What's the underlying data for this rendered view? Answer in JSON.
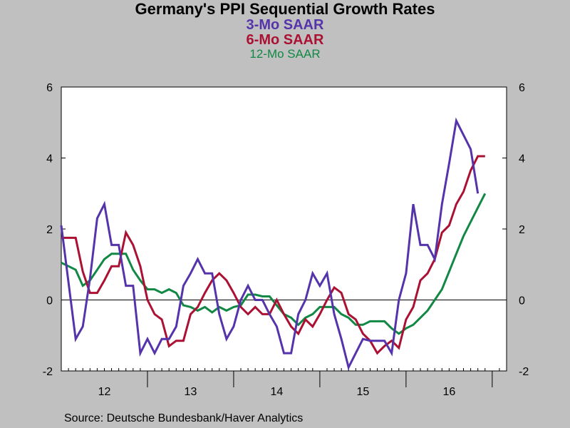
{
  "chart_data": {
    "type": "line",
    "title": "Germany's PPI Sequential Growth Rates",
    "subtitles": [
      "3-Mo SAAR",
      "6-Mo SAAR",
      "12-Mo SAAR"
    ],
    "source": "Source:  Deutsche Bundesbank/Haver Analytics",
    "ylim": [
      -2,
      6
    ],
    "yticks": [
      -2,
      0,
      2,
      4,
      6
    ],
    "xlabels": [
      "12",
      "13",
      "14",
      "15",
      "16"
    ],
    "x_start": "2012-01",
    "x_end": "2017-03",
    "grid": false,
    "colors": {
      "s3": "#5533aa",
      "s6": "#aa1133",
      "s12": "#118844",
      "zero": "#000000",
      "plot_bg": "#ffffff",
      "page_bg": "#c0c0c0"
    },
    "series": [
      {
        "name": "3-Mo SAAR",
        "values": [
          2.1,
          0.5,
          -1.1,
          -0.75,
          0.6,
          2.3,
          2.7,
          1.55,
          1.55,
          0.4,
          0.4,
          -1.5,
          -1.1,
          -1.5,
          -1.1,
          -1.1,
          -0.75,
          0.4,
          0.75,
          1.15,
          0.75,
          0.75,
          -0.4,
          -1.1,
          -0.75,
          0.0,
          0.4,
          0.0,
          0.0,
          -0.4,
          -0.75,
          -1.5,
          -1.5,
          -0.4,
          0.0,
          0.75,
          0.4,
          0.75,
          -0.4,
          -1.1,
          -1.9,
          -1.5,
          -1.1,
          -1.15,
          -1.15,
          -1.15,
          -1.5,
          0.0,
          0.75,
          2.7,
          1.55,
          1.55,
          1.15,
          2.7,
          3.85,
          5.05,
          4.65,
          4.25,
          3.0
        ]
      },
      {
        "name": "6-Mo SAAR",
        "values": [
          1.75,
          1.75,
          1.75,
          0.8,
          0.2,
          0.2,
          0.55,
          0.95,
          0.95,
          1.9,
          1.55,
          0.95,
          0.0,
          -0.4,
          -0.55,
          -1.3,
          -1.15,
          -1.15,
          -0.4,
          -0.2,
          0.2,
          0.55,
          0.75,
          0.55,
          0.2,
          -0.2,
          -0.4,
          -0.2,
          -0.4,
          -0.4,
          0.0,
          -0.4,
          -0.75,
          -0.95,
          -0.55,
          -0.75,
          -0.4,
          0.0,
          0.35,
          0.2,
          -0.4,
          -0.55,
          -0.95,
          -1.15,
          -1.5,
          -1.3,
          -1.15,
          -1.35,
          -0.55,
          -0.2,
          0.55,
          0.75,
          1.15,
          1.9,
          2.1,
          2.7,
          3.05,
          3.65,
          4.05,
          4.05
        ]
      },
      {
        "name": "12-Mo SAAR",
        "values": [
          1.05,
          0.95,
          0.85,
          0.4,
          0.55,
          0.85,
          1.15,
          1.3,
          1.3,
          1.3,
          0.85,
          0.55,
          0.3,
          0.3,
          0.2,
          0.3,
          0.2,
          -0.15,
          -0.2,
          -0.3,
          -0.2,
          -0.35,
          -0.2,
          -0.3,
          -0.2,
          -0.15,
          0.15,
          0.15,
          0.1,
          0.1,
          -0.15,
          -0.4,
          -0.5,
          -0.7,
          -0.5,
          -0.4,
          -0.2,
          -0.2,
          -0.2,
          -0.4,
          -0.5,
          -0.7,
          -0.7,
          -0.6,
          -0.6,
          -0.6,
          -0.8,
          -0.95,
          -0.8,
          -0.7,
          -0.5,
          -0.3,
          0.0,
          0.3,
          0.8,
          1.3,
          1.8,
          2.2,
          2.6,
          3.0
        ]
      }
    ]
  }
}
